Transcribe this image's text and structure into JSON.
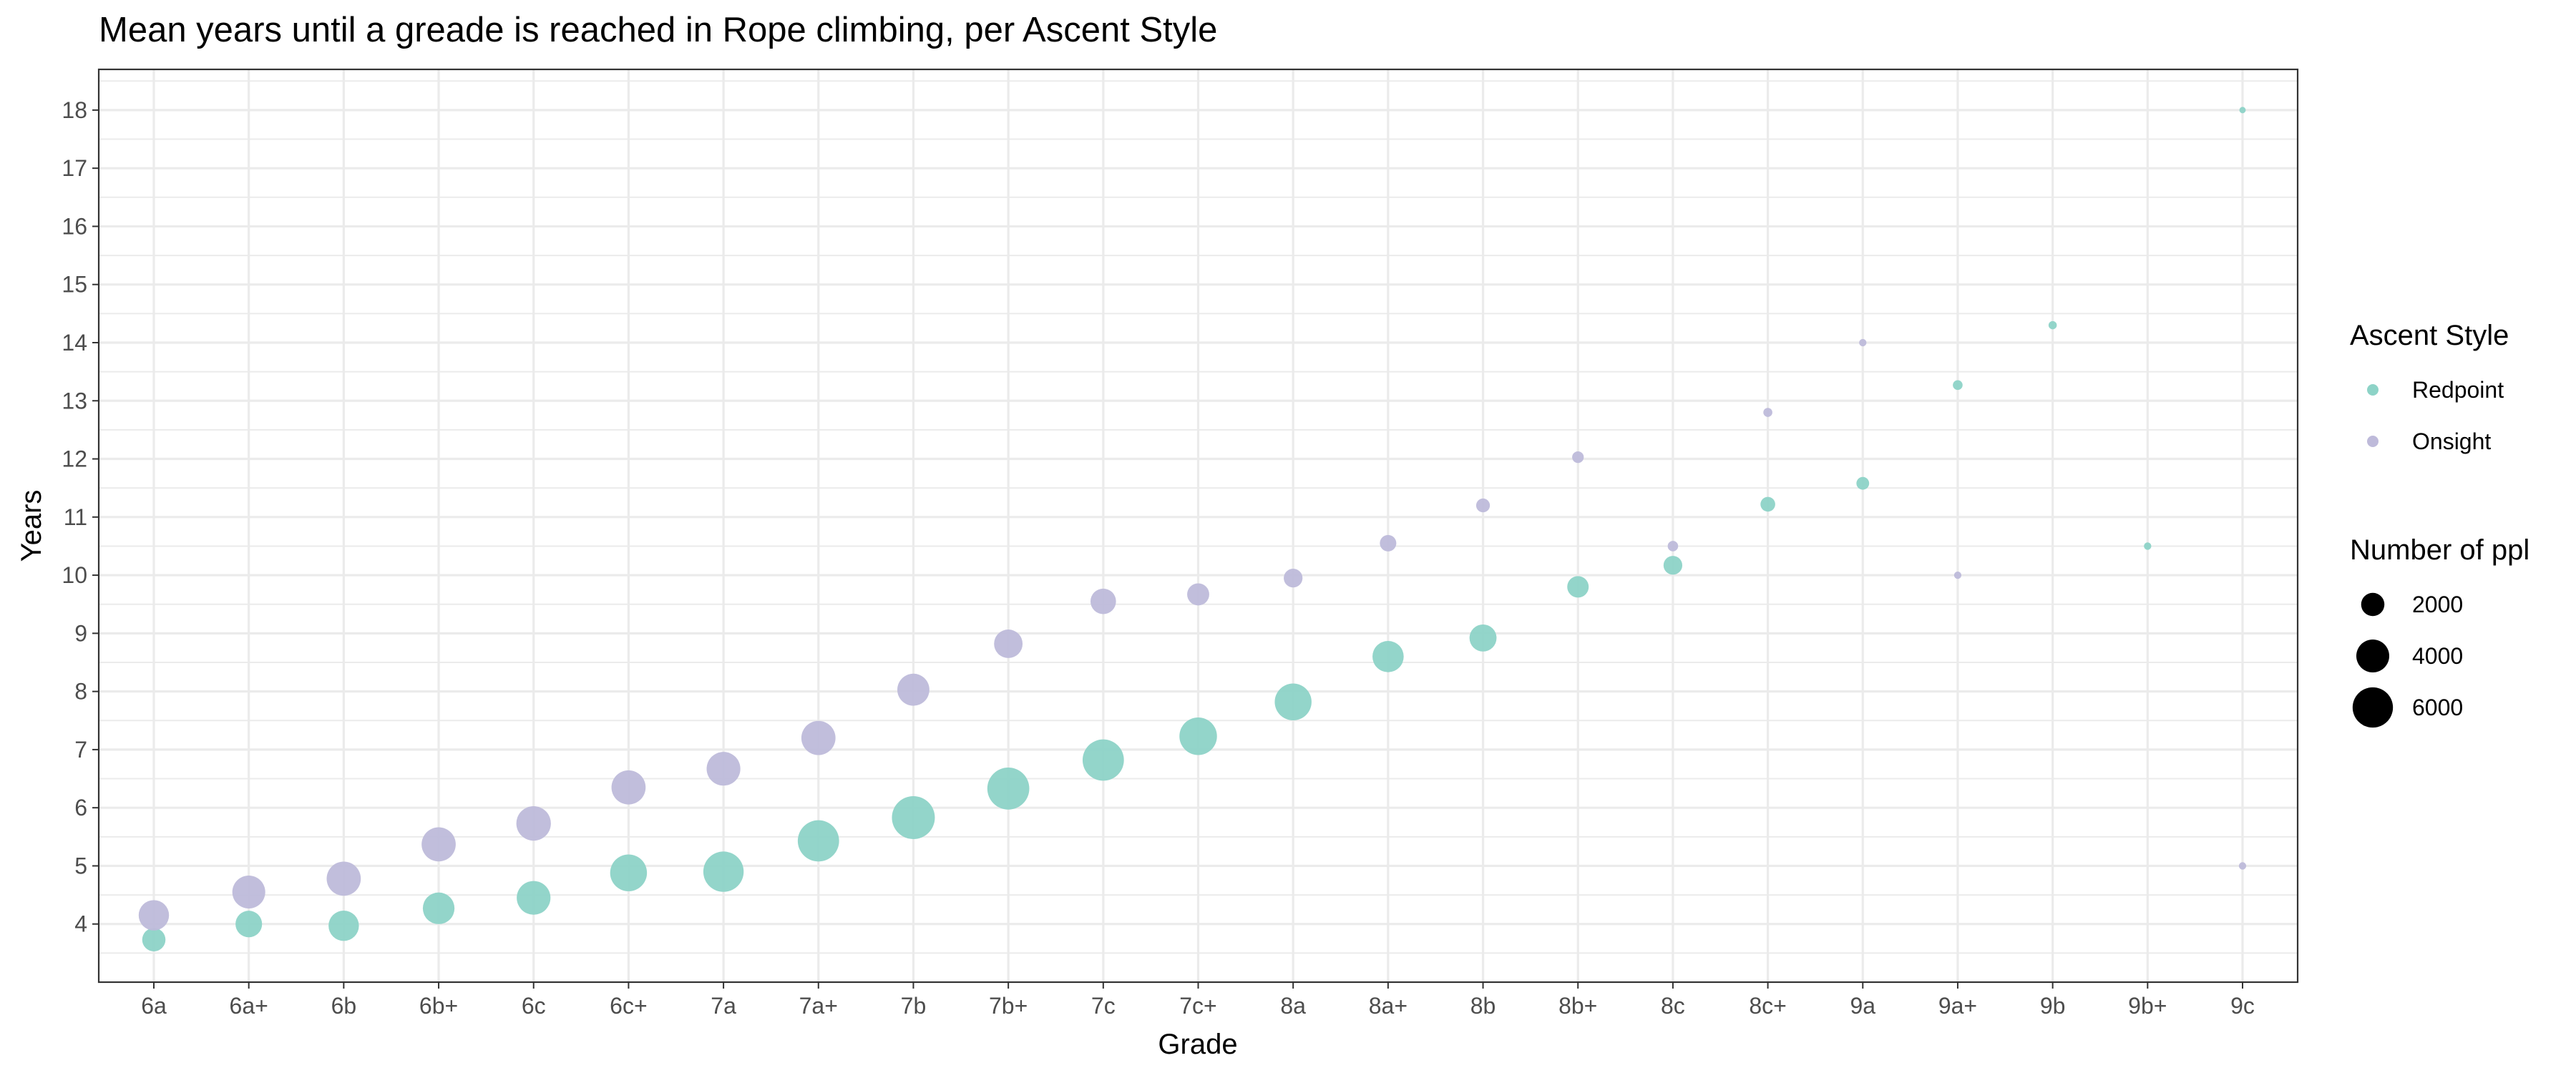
{
  "colors": {
    "Redpoint": "#8dd3c7",
    "Onsight": "#bebada",
    "size_key": "#000000"
  },
  "chart_data": {
    "type": "scatter",
    "title": "Mean years until a greade is reached in Rope climbing, per Ascent Style",
    "xlabel": "Grade",
    "ylabel": "Years",
    "categories": [
      "6a",
      "6a+",
      "6b",
      "6b+",
      "6c",
      "6c+",
      "7a",
      "7a+",
      "7b",
      "7b+",
      "7c",
      "7c+",
      "8a",
      "8a+",
      "8b",
      "8b+",
      "8c",
      "8c+",
      "9a",
      "9a+",
      "9b",
      "9b+",
      "9c"
    ],
    "yticks": [
      "4",
      "5",
      "6",
      "7",
      "8",
      "9",
      "10",
      "11",
      "12",
      "13",
      "14",
      "15",
      "16",
      "17",
      "18"
    ],
    "ylim": [
      3.0,
      18.7
    ],
    "grid": true,
    "legend": {
      "position": "right",
      "color_title": "Ascent Style",
      "size_title": "Number of ppl",
      "size_entries": [
        {
          "label": "2000",
          "value": 2000
        },
        {
          "label": "4000",
          "value": 4000
        },
        {
          "label": "6000",
          "value": 6000
        }
      ]
    },
    "series": [
      {
        "name": "Redpoint",
        "points": [
          {
            "x": "6a",
            "y": 3.73,
            "n": 2000
          },
          {
            "x": "6a+",
            "y": 4.0,
            "n": 2600
          },
          {
            "x": "6b",
            "y": 3.97,
            "n": 3400
          },
          {
            "x": "6b+",
            "y": 4.27,
            "n": 3700
          },
          {
            "x": "6c",
            "y": 4.45,
            "n": 4200
          },
          {
            "x": "6c+",
            "y": 4.88,
            "n": 5000
          },
          {
            "x": "7a",
            "y": 4.9,
            "n": 6000
          },
          {
            "x": "7a+",
            "y": 5.43,
            "n": 6300
          },
          {
            "x": "7b",
            "y": 5.83,
            "n": 6800
          },
          {
            "x": "7b+",
            "y": 6.33,
            "n": 6500
          },
          {
            "x": "7c",
            "y": 6.82,
            "n": 6300
          },
          {
            "x": "7c+",
            "y": 7.23,
            "n": 5200
          },
          {
            "x": "8a",
            "y": 7.82,
            "n": 5000
          },
          {
            "x": "8a+",
            "y": 8.6,
            "n": 3600
          },
          {
            "x": "8b",
            "y": 8.92,
            "n": 2700
          },
          {
            "x": "8b+",
            "y": 9.8,
            "n": 1700
          },
          {
            "x": "8c",
            "y": 10.17,
            "n": 1300
          },
          {
            "x": "8c+",
            "y": 11.22,
            "n": 800
          },
          {
            "x": "9a",
            "y": 11.58,
            "n": 600
          },
          {
            "x": "9a+",
            "y": 13.27,
            "n": 350
          },
          {
            "x": "9b",
            "y": 14.3,
            "n": 250
          },
          {
            "x": "9b+",
            "y": 10.5,
            "n": 200
          },
          {
            "x": "9c",
            "y": 18.0,
            "n": 150
          }
        ]
      },
      {
        "name": "Onsight",
        "points": [
          {
            "x": "6a",
            "y": 4.15,
            "n": 3400
          },
          {
            "x": "6a+",
            "y": 4.55,
            "n": 4000
          },
          {
            "x": "6b",
            "y": 4.78,
            "n": 4300
          },
          {
            "x": "6b+",
            "y": 5.37,
            "n": 4300
          },
          {
            "x": "6c",
            "y": 5.73,
            "n": 4400
          },
          {
            "x": "6c+",
            "y": 6.35,
            "n": 4300
          },
          {
            "x": "7a",
            "y": 6.67,
            "n": 4200
          },
          {
            "x": "7a+",
            "y": 7.2,
            "n": 4300
          },
          {
            "x": "7b",
            "y": 8.03,
            "n": 3800
          },
          {
            "x": "7b+",
            "y": 8.82,
            "n": 3000
          },
          {
            "x": "7c",
            "y": 9.55,
            "n": 2400
          },
          {
            "x": "7c+",
            "y": 9.67,
            "n": 1800
          },
          {
            "x": "8a",
            "y": 9.95,
            "n": 1300
          },
          {
            "x": "8a+",
            "y": 10.55,
            "n": 1000
          },
          {
            "x": "8b",
            "y": 11.2,
            "n": 700
          },
          {
            "x": "8b+",
            "y": 12.03,
            "n": 500
          },
          {
            "x": "8c",
            "y": 10.5,
            "n": 400
          },
          {
            "x": "8c+",
            "y": 12.8,
            "n": 300
          },
          {
            "x": "9a",
            "y": 14.0,
            "n": 200
          },
          {
            "x": "9a+",
            "y": 10.0,
            "n": 200
          },
          {
            "x": "9c",
            "y": 5.0,
            "n": 200
          }
        ]
      }
    ]
  }
}
